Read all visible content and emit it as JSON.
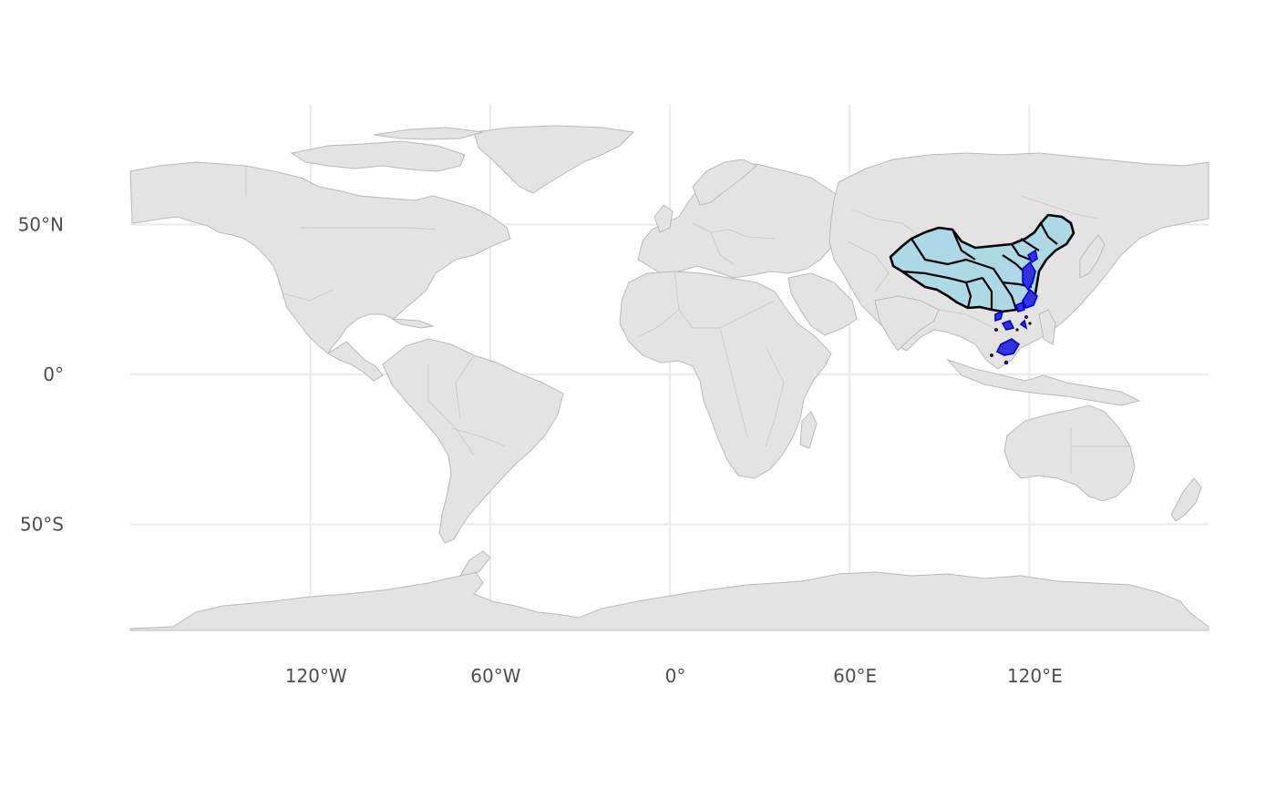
{
  "map": {
    "x_ticks": [
      {
        "lon": -120,
        "label": "120°W"
      },
      {
        "lon": -60,
        "label": "60°W"
      },
      {
        "lon": 0,
        "label": "0°"
      },
      {
        "lon": 60,
        "label": "60°E"
      },
      {
        "lon": 120,
        "label": "120°E"
      }
    ],
    "y_ticks": [
      {
        "lat": 50,
        "label": "50°N"
      },
      {
        "lat": 0,
        "label": "0°"
      },
      {
        "lat": -50,
        "label": "50°S"
      }
    ],
    "lon_range": [
      -180,
      180
    ],
    "lat_range": [
      -85,
      90
    ],
    "highlighted_region": "China",
    "colors": {
      "land": "#e3e3e3",
      "land_border": "#b8b8b8",
      "highlight_fill": "#add8e6",
      "highlight_border": "#000000",
      "highlight_points": "#0000cc",
      "grid": "#ebebeb",
      "axis_text": "#4d4d4d"
    }
  }
}
